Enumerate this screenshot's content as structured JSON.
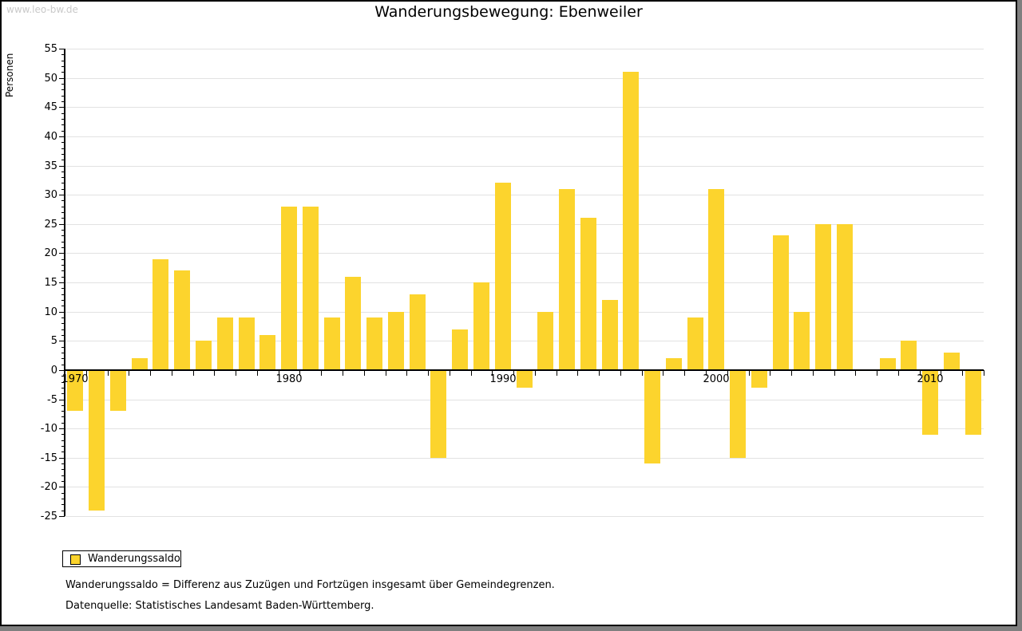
{
  "watermark": {
    "text": "www.leo-bw.de"
  },
  "header": {
    "title": "Wanderungsbewegung: Ebenweiler"
  },
  "legend": {
    "label": "Wanderungssaldo"
  },
  "footnotes": {
    "definition": "Wanderungssaldo = Differenz aus Zuzügen und Fortzügen insgesamt über Gemeindegrenzen.",
    "source": "Datenquelle: Statistisches Landesamt Baden-Württemberg."
  },
  "colors": {
    "bar": "#fcd42d",
    "grid": "#e2e2e2",
    "axis": "#000000",
    "watermark": "#c9c9c9",
    "frame_shadow": "#7f7f7f"
  },
  "chart_data": {
    "type": "bar",
    "title": "Wanderungsbewegung: Ebenweiler",
    "ylabel": "Personen",
    "series_name": "Wanderungssaldo",
    "years": [
      1970,
      1971,
      1972,
      1973,
      1974,
      1975,
      1976,
      1977,
      1978,
      1979,
      1980,
      1981,
      1982,
      1983,
      1984,
      1985,
      1986,
      1987,
      1988,
      1989,
      1990,
      1991,
      1992,
      1993,
      1994,
      1995,
      1996,
      1997,
      1998,
      1999,
      2000,
      2001,
      2002,
      2003,
      2004,
      2005,
      2006,
      2007,
      2008,
      2009,
      2010,
      2011,
      2012
    ],
    "values": [
      -7,
      -24,
      -7,
      2,
      19,
      17,
      5,
      9,
      9,
      6,
      28,
      28,
      9,
      16,
      9,
      10,
      13,
      -15,
      7,
      15,
      32,
      -3,
      10,
      31,
      26,
      12,
      51,
      -16,
      2,
      9,
      31,
      -15,
      -3,
      23,
      10,
      25,
      25,
      0,
      2,
      5,
      -11,
      3,
      -11
    ],
    "ylim": [
      -25,
      55
    ],
    "ytick_step": 5,
    "ytick_minor_step": 1,
    "decade_labels": [
      "1970",
      "1980",
      "1990",
      "2000",
      "2010"
    ],
    "grid": true,
    "legend_position": "bottom-left",
    "bar_color": "#fcd42d"
  }
}
